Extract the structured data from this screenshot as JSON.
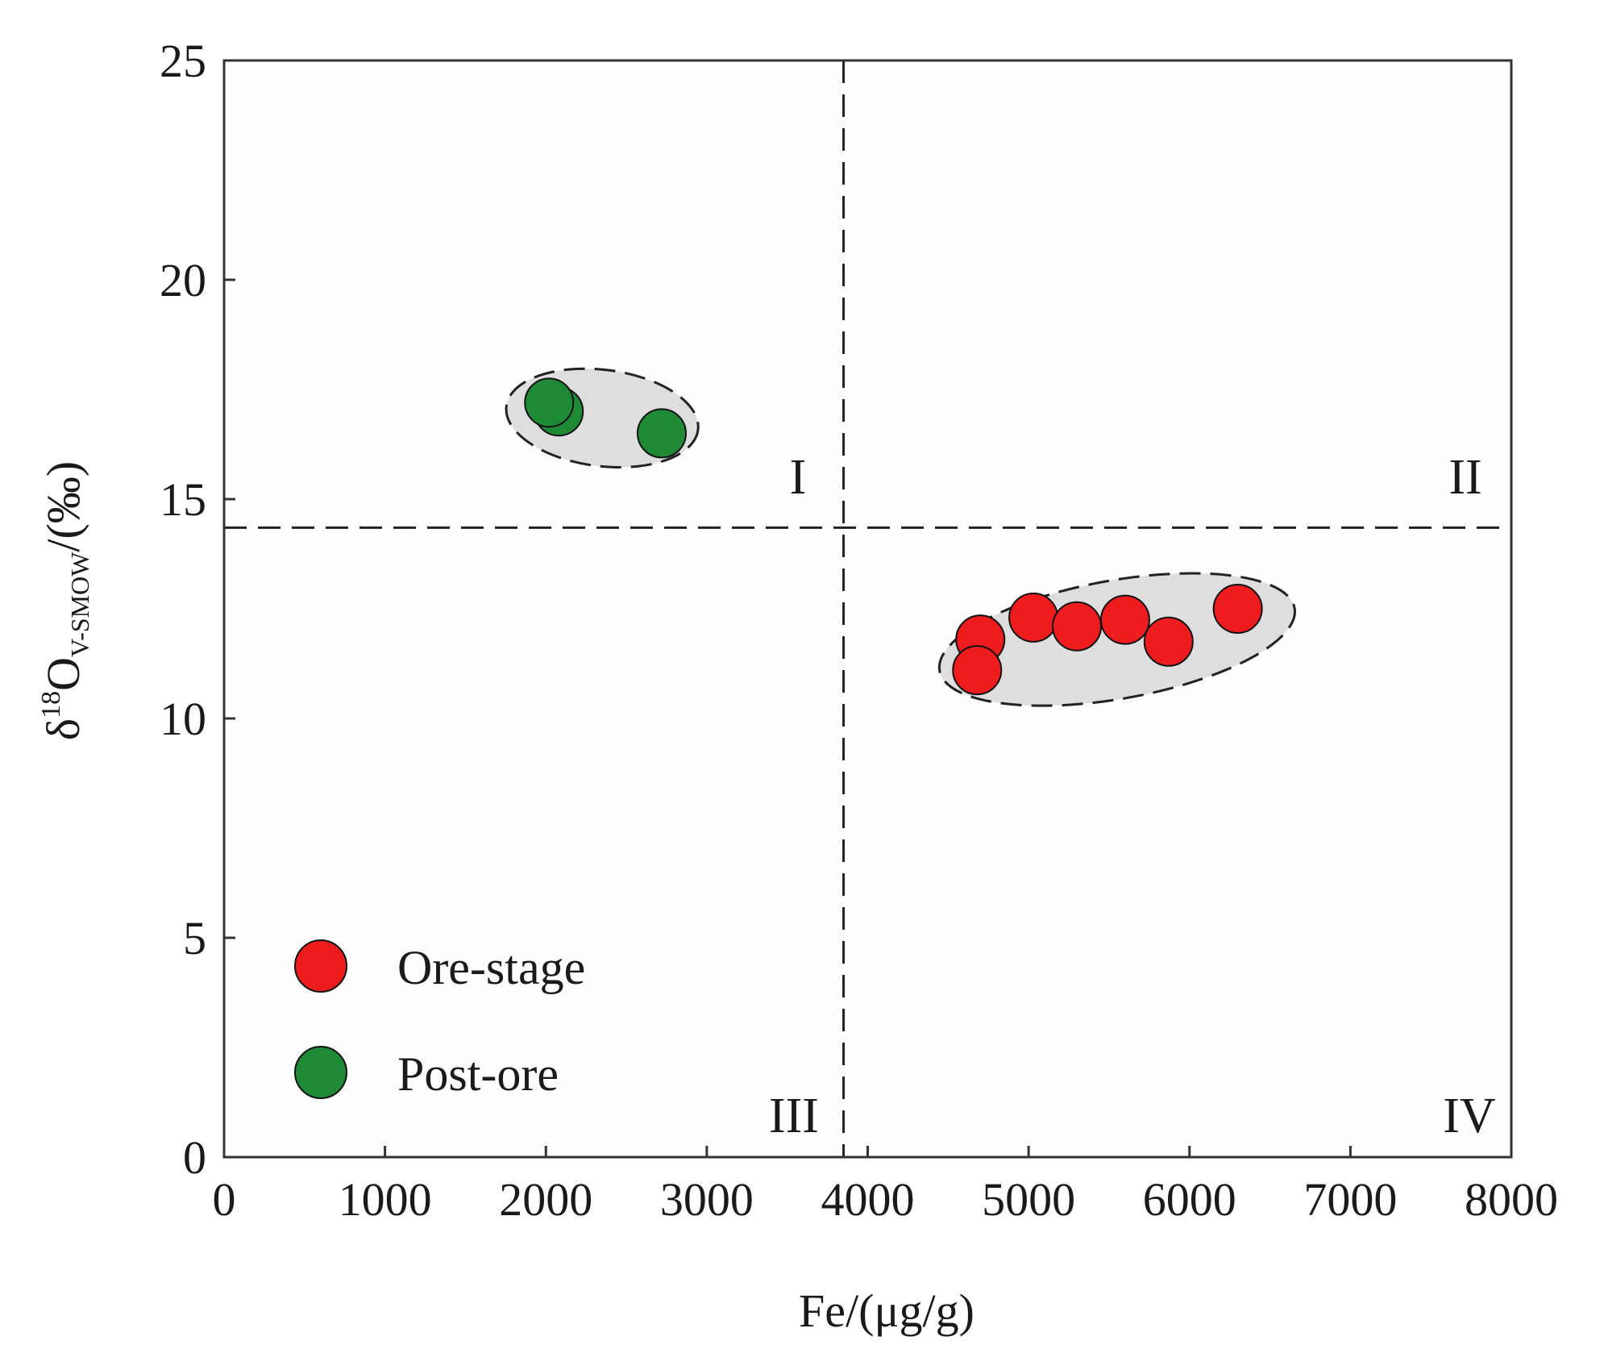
{
  "chart_data": {
    "type": "scatter",
    "xlabel": "Fe/(μg/g)",
    "ylabel": {
      "prefix": "δ",
      "superscript": "18",
      "main": "O",
      "subscript": "V-SMOW",
      "suffix": "/(‰)"
    },
    "xlim": [
      0,
      8000
    ],
    "ylim": [
      0,
      25
    ],
    "x_ticks": [
      "0",
      "1000",
      "2000",
      "3000",
      "4000",
      "5000",
      "6000",
      "7000",
      "8000"
    ],
    "y_ticks": [
      "0",
      "5",
      "10",
      "15",
      "20",
      "25"
    ],
    "divider_lines": {
      "x": 3850,
      "y": 14.35
    },
    "quadrant_labels": [
      "I",
      "II",
      "III",
      "IV"
    ],
    "legend_position": "bottom-left",
    "series": [
      {
        "name": "Ore-stage",
        "color": "#ee1c1c",
        "points": [
          {
            "x": 4700,
            "y": 11.8
          },
          {
            "x": 4680,
            "y": 11.1
          },
          {
            "x": 5030,
            "y": 12.3
          },
          {
            "x": 5300,
            "y": 12.1
          },
          {
            "x": 5600,
            "y": 12.25
          },
          {
            "x": 5870,
            "y": 11.75
          },
          {
            "x": 6300,
            "y": 12.5
          }
        ]
      },
      {
        "name": "Post-ore",
        "color": "#1f8a36",
        "points": [
          {
            "x": 2080,
            "y": 17.0
          },
          {
            "x": 2020,
            "y": 17.2
          },
          {
            "x": 2720,
            "y": 16.5
          }
        ]
      }
    ],
    "group_ellipses": [
      {
        "series": "Post-ore",
        "cx": 2350,
        "cy": 16.85,
        "rx": 600,
        "ry": 1.1,
        "rotate": 7,
        "fill": "#dedede"
      },
      {
        "series": "Ore-stage",
        "cx": 5550,
        "cy": 11.8,
        "rx": 1120,
        "ry": 1.35,
        "rotate": -10,
        "fill": "#dedede"
      }
    ]
  }
}
